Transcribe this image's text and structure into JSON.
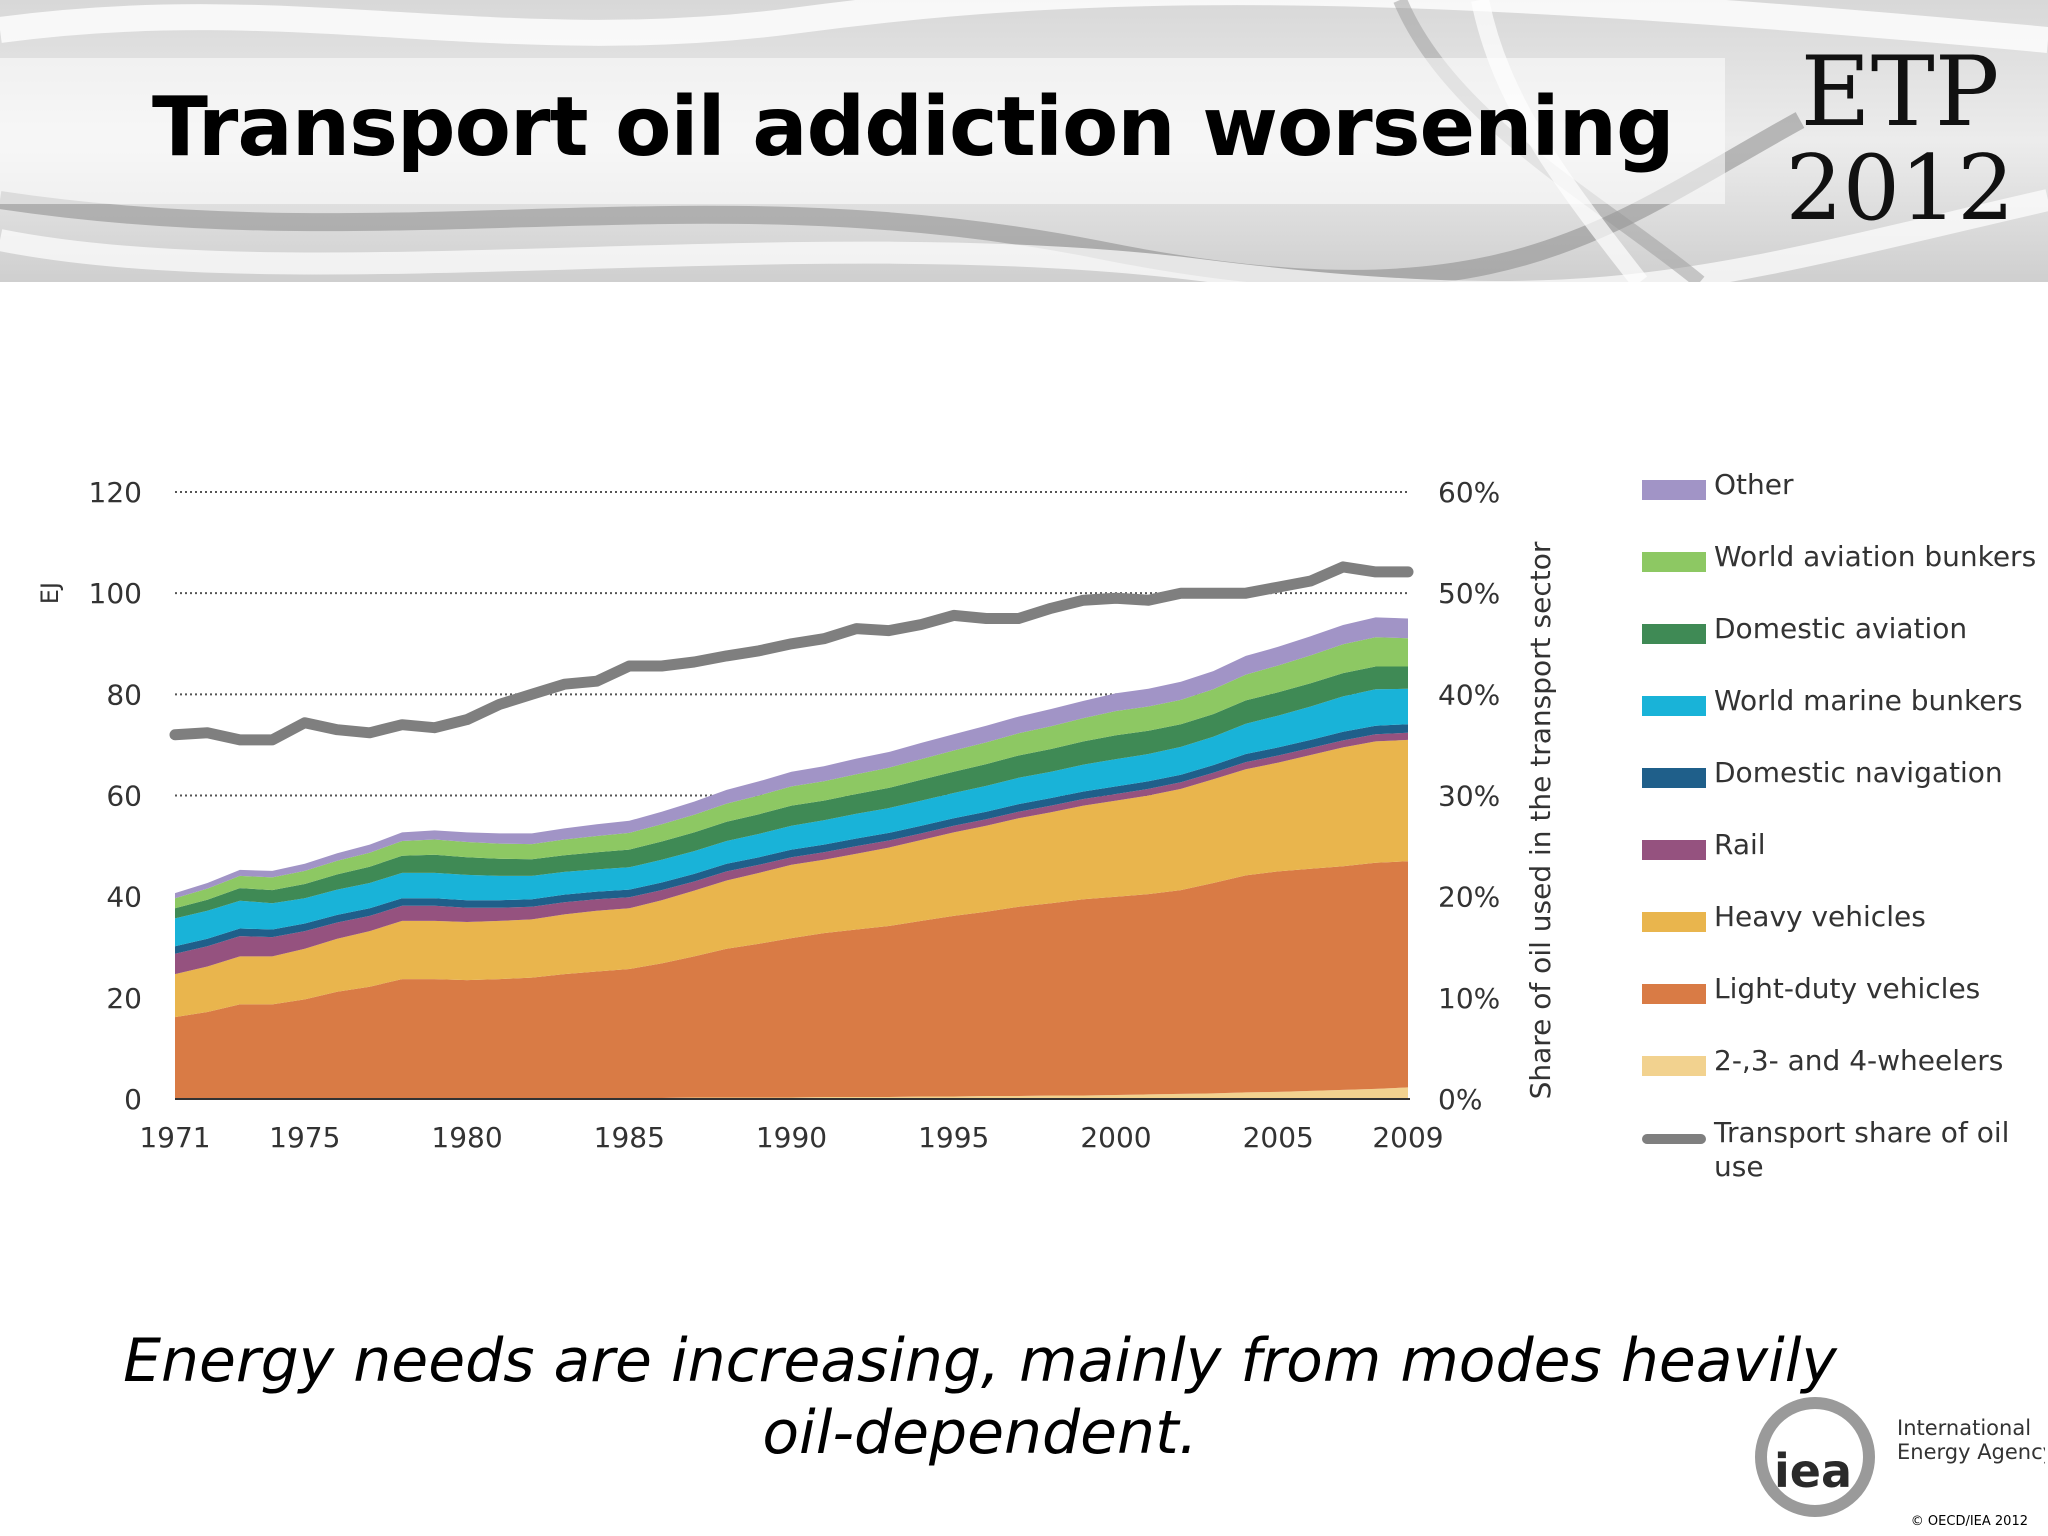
{
  "slide": {
    "title": "Transport oil addiction worsening",
    "badge_line1": "ETP",
    "badge_line2": "2012",
    "caption_line1": "Energy needs are increasing, mainly from modes heavily",
    "caption_line2": "oil-dependent.",
    "logo_line1": "International",
    "logo_line2": "Energy Agency",
    "logo_mark": "iea",
    "copyright": "© OECD/IEA 2012"
  },
  "chart_data": {
    "type": "area",
    "stacked": true,
    "x": [
      1971,
      1972,
      1973,
      1974,
      1975,
      1976,
      1977,
      1978,
      1979,
      1980,
      1981,
      1982,
      1983,
      1984,
      1985,
      1986,
      1987,
      1988,
      1989,
      1990,
      1991,
      1992,
      1993,
      1994,
      1995,
      1996,
      1997,
      1998,
      1999,
      2000,
      2001,
      2002,
      2003,
      2004,
      2005,
      2006,
      2007,
      2008,
      2009
    ],
    "xticks": [
      "1971",
      "1975",
      "1980",
      "1985",
      "1990",
      "1995",
      "2000",
      "2005",
      "2009"
    ],
    "xtick_values": [
      1971,
      1975,
      1980,
      1985,
      1990,
      1995,
      2000,
      2005,
      2009
    ],
    "ylabel": "EJ",
    "ylim": [
      0,
      120
    ],
    "yticks": [
      "0",
      "20",
      "40",
      "60",
      "80",
      "100",
      "120"
    ],
    "ytick_values": [
      0,
      20,
      40,
      60,
      80,
      100,
      120
    ],
    "y2label": "Share of oil used in the transport sector",
    "y2lim": [
      0,
      60
    ],
    "y2ticks": [
      "0%",
      "10%",
      "20%",
      "30%",
      "40%",
      "50%",
      "60%"
    ],
    "y2tick_values": [
      0,
      10,
      20,
      30,
      40,
      50,
      60
    ],
    "grid": "dotted horizontal at 60, 80, 100, 120",
    "legend_position": "right",
    "series": [
      {
        "name": "2-,3- and 4-wheelers",
        "color": "#f2d28f",
        "values": [
          0.2,
          0.2,
          0.2,
          0.2,
          0.2,
          0.2,
          0.2,
          0.2,
          0.2,
          0.2,
          0.2,
          0.2,
          0.2,
          0.2,
          0.2,
          0.2,
          0.3,
          0.3,
          0.3,
          0.3,
          0.4,
          0.4,
          0.4,
          0.5,
          0.5,
          0.6,
          0.6,
          0.7,
          0.7,
          0.8,
          0.9,
          1.0,
          1.1,
          1.3,
          1.4,
          1.6,
          1.8,
          2.0,
          2.3
        ]
      },
      {
        "name": "Light-duty vehicles",
        "color": "#d97b45",
        "values": [
          16.0,
          17.0,
          18.5,
          18.5,
          19.5,
          21.0,
          22.0,
          23.5,
          23.5,
          23.3,
          23.5,
          23.8,
          24.5,
          25.0,
          25.5,
          26.6,
          27.9,
          29.4,
          30.4,
          31.5,
          32.4,
          33.1,
          33.8,
          34.7,
          35.7,
          36.4,
          37.4,
          38.0,
          38.8,
          39.2,
          39.6,
          40.3,
          41.6,
          42.9,
          43.6,
          43.9,
          44.2,
          44.7,
          44.7
        ]
      },
      {
        "name": "Heavy vehicles",
        "color": "#e9b54d",
        "values": [
          8.5,
          9.0,
          9.5,
          9.5,
          10.0,
          10.5,
          11.0,
          11.5,
          11.5,
          11.5,
          11.5,
          11.5,
          11.8,
          12.0,
          12.0,
          12.5,
          13.0,
          13.5,
          14.0,
          14.5,
          14.5,
          15.0,
          15.5,
          16.0,
          16.5,
          17.0,
          17.5,
          18.0,
          18.5,
          19.0,
          19.5,
          20.0,
          20.5,
          21.0,
          21.5,
          22.5,
          23.5,
          24.0,
          24.0
        ]
      },
      {
        "name": "Rail",
        "color": "#95527f",
        "values": [
          4.0,
          4.0,
          4.0,
          3.8,
          3.5,
          3.2,
          3.0,
          3.0,
          3.0,
          2.8,
          2.6,
          2.5,
          2.4,
          2.3,
          2.2,
          2.0,
          1.8,
          1.8,
          1.6,
          1.5,
          1.5,
          1.5,
          1.4,
          1.3,
          1.3,
          1.3,
          1.3,
          1.3,
          1.3,
          1.3,
          1.3,
          1.3,
          1.3,
          1.4,
          1.4,
          1.4,
          1.4,
          1.4,
          1.4
        ]
      },
      {
        "name": "Domestic navigation",
        "color": "#1f5f8a",
        "values": [
          1.5,
          1.5,
          1.5,
          1.5,
          1.5,
          1.5,
          1.5,
          1.5,
          1.5,
          1.5,
          1.5,
          1.5,
          1.5,
          1.5,
          1.5,
          1.5,
          1.5,
          1.5,
          1.5,
          1.5,
          1.5,
          1.5,
          1.5,
          1.5,
          1.5,
          1.5,
          1.5,
          1.5,
          1.5,
          1.5,
          1.5,
          1.5,
          1.5,
          1.6,
          1.6,
          1.6,
          1.7,
          1.7,
          1.7
        ]
      },
      {
        "name": "World marine bunkers",
        "color": "#19b3d8",
        "values": [
          5.5,
          5.5,
          5.5,
          5.2,
          5.0,
          5.0,
          5.0,
          5.0,
          5.0,
          5.0,
          4.8,
          4.6,
          4.5,
          4.4,
          4.4,
          4.5,
          4.5,
          4.5,
          4.6,
          4.7,
          4.8,
          4.9,
          4.9,
          5.0,
          5.0,
          5.1,
          5.2,
          5.2,
          5.3,
          5.4,
          5.4,
          5.5,
          5.6,
          6.0,
          6.3,
          6.6,
          7.0,
          7.2,
          7.0
        ]
      },
      {
        "name": "Domestic aviation",
        "color": "#3f8a55",
        "values": [
          2.0,
          2.2,
          2.5,
          2.6,
          2.8,
          3.0,
          3.2,
          3.4,
          3.6,
          3.5,
          3.4,
          3.3,
          3.3,
          3.4,
          3.5,
          3.6,
          3.7,
          3.8,
          3.9,
          4.0,
          3.9,
          3.9,
          4.0,
          4.1,
          4.2,
          4.3,
          4.4,
          4.5,
          4.6,
          4.7,
          4.6,
          4.5,
          4.5,
          4.6,
          4.6,
          4.6,
          4.6,
          4.5,
          4.4
        ]
      },
      {
        "name": "World aviation bunkers",
        "color": "#8dc863",
        "values": [
          2.0,
          2.2,
          2.4,
          2.5,
          2.6,
          2.7,
          2.8,
          2.9,
          3.0,
          3.0,
          3.0,
          3.0,
          3.1,
          3.2,
          3.3,
          3.4,
          3.5,
          3.6,
          3.7,
          3.8,
          3.8,
          3.9,
          4.0,
          4.1,
          4.2,
          4.3,
          4.4,
          4.5,
          4.6,
          4.8,
          4.8,
          4.8,
          4.9,
          5.1,
          5.3,
          5.5,
          5.7,
          5.8,
          5.6
        ]
      },
      {
        "name": "Other",
        "color": "#a194c6",
        "values": [
          1.0,
          1.1,
          1.2,
          1.3,
          1.4,
          1.5,
          1.6,
          1.7,
          1.8,
          1.9,
          2.0,
          2.1,
          2.2,
          2.3,
          2.4,
          2.5,
          2.6,
          2.7,
          2.8,
          2.9,
          3.0,
          3.1,
          3.1,
          3.2,
          3.2,
          3.3,
          3.3,
          3.4,
          3.4,
          3.5,
          3.5,
          3.6,
          3.6,
          3.7,
          3.7,
          3.8,
          3.8,
          3.9,
          3.9
        ]
      }
    ],
    "line_series": {
      "name": "Transport share of oil use",
      "axis": "secondary",
      "color": "#7f7f7f",
      "values": [
        36.0,
        36.2,
        35.5,
        35.5,
        37.2,
        36.5,
        36.2,
        37.0,
        36.7,
        37.5,
        39.0,
        40.0,
        41.0,
        41.3,
        42.8,
        42.8,
        43.2,
        43.8,
        44.3,
        45.0,
        45.5,
        46.5,
        46.3,
        46.9,
        47.8,
        47.5,
        47.5,
        48.5,
        49.3,
        49.5,
        49.3,
        50.0,
        50.0,
        50.0,
        50.6,
        51.2,
        52.6,
        52.1,
        52.1
      ]
    },
    "legend_order": [
      "Other",
      "World aviation bunkers",
      "Domestic aviation",
      "World marine bunkers",
      "Domestic navigation",
      "Rail",
      "Heavy vehicles",
      "Light-duty vehicles",
      "2-,3- and 4-wheelers",
      "Transport share of oil use"
    ]
  }
}
